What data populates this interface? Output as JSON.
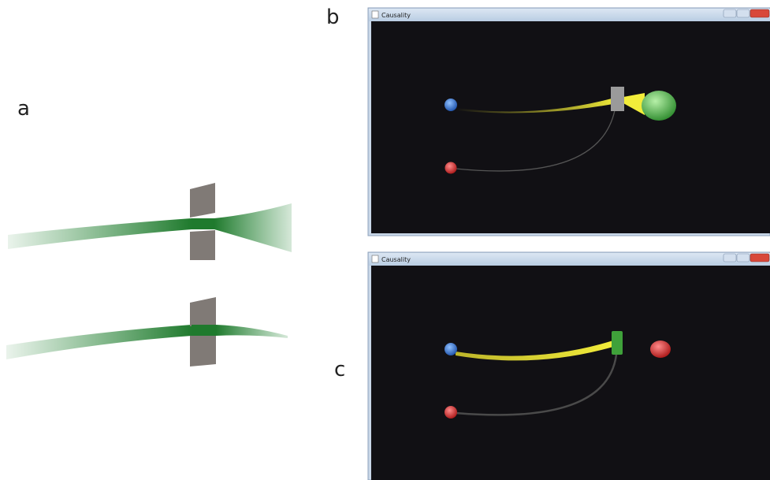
{
  "panels": [
    {
      "label": "a"
    },
    {
      "label": "b",
      "window_title": "Causality"
    },
    {
      "label": "c",
      "window_title": "Causality"
    }
  ]
}
